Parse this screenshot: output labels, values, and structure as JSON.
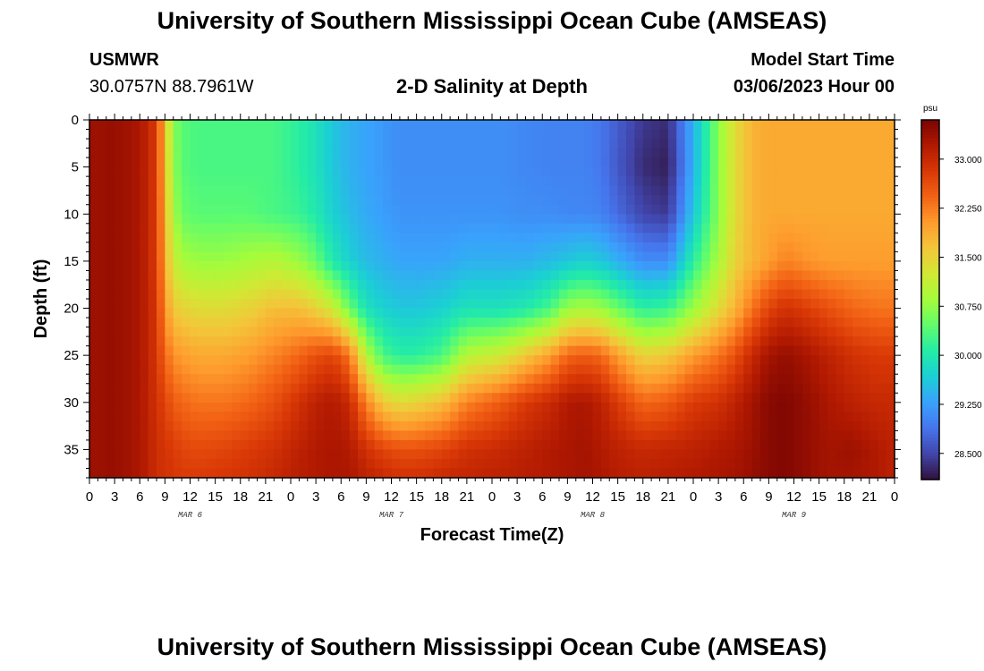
{
  "header": {
    "title": "University of Southern Mississippi Ocean Cube (AMSEAS)",
    "station_id": "USMWR",
    "station_coords": "30.0757N  88.7961W",
    "plot_title": "2-D Salinity at Depth",
    "model_start_label": "Model Start Time",
    "model_start_value": "03/06/2023 Hour 00"
  },
  "footer": {
    "title": "University of Southern Mississippi Ocean Cube (AMSEAS)"
  },
  "chart_data": {
    "type": "heatmap",
    "title": "2-D Salinity at Depth",
    "xlabel": "Forecast Time(Z)",
    "ylabel": "Depth (ft)",
    "x_unit": "forecast hours from 03/06/2023 00Z",
    "xlim": [
      0,
      96
    ],
    "ylim": [
      38,
      0
    ],
    "x_tick_values": [
      0,
      3,
      6,
      9,
      12,
      15,
      18,
      21,
      24,
      27,
      30,
      33,
      36,
      39,
      42,
      45,
      48,
      51,
      54,
      57,
      60,
      63,
      66,
      69,
      72,
      75,
      78,
      81,
      84,
      87,
      90,
      93,
      96
    ],
    "x_tick_labels": [
      "0",
      "3",
      "6",
      "9",
      "12",
      "15",
      "18",
      "21",
      "0",
      "3",
      "6",
      "9",
      "12",
      "15",
      "18",
      "21",
      "0",
      "3",
      "6",
      "9",
      "12",
      "15",
      "18",
      "21",
      "0",
      "3",
      "6",
      "9",
      "12",
      "15",
      "18",
      "21",
      "0"
    ],
    "date_labels": [
      {
        "hour": 12,
        "label": "MAR 6"
      },
      {
        "hour": 36,
        "label": "MAR 7"
      },
      {
        "hour": 60,
        "label": "MAR 8"
      },
      {
        "hour": 84,
        "label": "MAR 9"
      }
    ],
    "y_tick_values": [
      0,
      5,
      10,
      15,
      20,
      25,
      30,
      35
    ],
    "y_tick_labels": [
      "0",
      "5",
      "10",
      "15",
      "20",
      "25",
      "30",
      "35"
    ],
    "colorbar": {
      "unit": "psu",
      "range": [
        28.1,
        33.6
      ],
      "tick_values": [
        28.5,
        29.25,
        30.0,
        30.75,
        31.5,
        32.25,
        33.0
      ],
      "tick_labels": [
        "28.500",
        "29.250",
        "30.000",
        "30.750",
        "31.500",
        "32.250",
        "33.000"
      ],
      "colormap": [
        "#30123b",
        "#4145ab",
        "#4675ed",
        "#39a2fc",
        "#1bcfd4",
        "#24eca6",
        "#61fc6c",
        "#a4fc3b",
        "#d1e834",
        "#f3c63a",
        "#fe9b2d",
        "#f36315",
        "#d93806",
        "#b11901",
        "#7a0402"
      ]
    },
    "field_description": "Salinity (psu) vs forecast time (hours) and depth (ft)",
    "salinity_profiles": {
      "depths_ft": [
        0,
        5,
        10,
        15,
        20,
        25,
        30,
        35,
        38
      ],
      "times_h": [
        0,
        3,
        6,
        8,
        9,
        10,
        11,
        13,
        16,
        19,
        22,
        25,
        27,
        29,
        31,
        33,
        35,
        37,
        39,
        42,
        45,
        49,
        52,
        55,
        57,
        59,
        61,
        63,
        66,
        69,
        72,
        75,
        77,
        79,
        81,
        83,
        85,
        88,
        91,
        94,
        96
      ],
      "values": [
        [
          33.35,
          33.35,
          33.35,
          33.35,
          33.35,
          33.35,
          33.35,
          33.35,
          33.35
        ],
        [
          33.4,
          33.4,
          33.4,
          33.4,
          33.4,
          33.4,
          33.4,
          33.4,
          33.4
        ],
        [
          33.25,
          33.25,
          33.25,
          33.25,
          33.25,
          33.25,
          33.25,
          33.25,
          33.25
        ],
        [
          32.8,
          32.8,
          32.8,
          32.8,
          32.85,
          32.85,
          32.9,
          32.95,
          32.95
        ],
        [
          31.7,
          31.7,
          31.8,
          31.9,
          32.1,
          32.4,
          32.7,
          32.85,
          32.9
        ],
        [
          30.7,
          30.75,
          30.9,
          31.2,
          31.6,
          32.1,
          32.5,
          32.8,
          32.85
        ],
        [
          30.4,
          30.4,
          30.5,
          30.9,
          31.5,
          32.0,
          32.4,
          32.7,
          32.8
        ],
        [
          30.3,
          30.3,
          30.4,
          30.8,
          31.4,
          31.9,
          32.3,
          32.65,
          32.8
        ],
        [
          30.3,
          30.3,
          30.4,
          30.8,
          31.4,
          31.9,
          32.3,
          32.7,
          32.85
        ],
        [
          30.3,
          30.3,
          30.4,
          30.9,
          31.5,
          32.0,
          32.4,
          32.8,
          32.9
        ],
        [
          30.3,
          30.3,
          30.3,
          31.0,
          31.7,
          32.2,
          32.6,
          32.9,
          33.0
        ],
        [
          30.1,
          30.1,
          30.2,
          30.8,
          31.7,
          32.4,
          32.9,
          33.1,
          33.15
        ],
        [
          29.9,
          29.9,
          30.0,
          30.5,
          31.5,
          32.6,
          33.1,
          33.2,
          33.2
        ],
        [
          29.6,
          29.6,
          29.7,
          30.0,
          31.2,
          32.7,
          33.2,
          33.25,
          33.25
        ],
        [
          29.4,
          29.4,
          29.5,
          29.7,
          30.5,
          32.3,
          33.0,
          33.2,
          33.25
        ],
        [
          29.3,
          29.3,
          29.35,
          29.5,
          29.9,
          31.0,
          32.2,
          32.9,
          33.1
        ],
        [
          29.2,
          29.2,
          29.25,
          29.4,
          29.7,
          30.3,
          31.6,
          32.7,
          33.0
        ],
        [
          29.1,
          29.1,
          29.15,
          29.3,
          29.6,
          30.1,
          31.4,
          32.6,
          32.9
        ],
        [
          29.1,
          29.1,
          29.15,
          29.3,
          29.6,
          30.1,
          31.5,
          32.6,
          32.9
        ],
        [
          29.1,
          29.1,
          29.15,
          29.3,
          29.7,
          30.3,
          31.7,
          32.7,
          33.0
        ],
        [
          29.1,
          29.1,
          29.15,
          29.4,
          29.9,
          31.0,
          32.2,
          32.9,
          33.05
        ],
        [
          29.1,
          29.1,
          29.15,
          29.4,
          29.9,
          31.2,
          32.5,
          33.0,
          33.1
        ],
        [
          29.05,
          29.05,
          29.1,
          29.4,
          30.0,
          31.6,
          32.8,
          33.1,
          33.15
        ],
        [
          29.0,
          29.0,
          29.1,
          29.5,
          30.3,
          32.0,
          33.0,
          33.2,
          33.2
        ],
        [
          29.0,
          29.0,
          29.05,
          29.6,
          30.8,
          32.4,
          33.2,
          33.25,
          33.25
        ],
        [
          29.0,
          29.0,
          29.05,
          29.7,
          30.9,
          32.5,
          33.25,
          33.3,
          33.3
        ],
        [
          28.9,
          28.9,
          29.0,
          29.6,
          30.8,
          32.4,
          33.1,
          33.2,
          33.25
        ],
        [
          28.7,
          28.65,
          28.8,
          29.4,
          30.5,
          32.0,
          32.8,
          33.1,
          33.15
        ],
        [
          28.4,
          28.3,
          28.5,
          29.1,
          30.1,
          31.5,
          32.4,
          33.0,
          33.1
        ],
        [
          28.3,
          28.2,
          28.4,
          29.1,
          30.2,
          31.6,
          32.5,
          33.05,
          33.15
        ],
        [
          29.4,
          29.4,
          29.6,
          30.1,
          30.8,
          32.0,
          32.8,
          33.1,
          33.2
        ],
        [
          30.7,
          30.7,
          30.7,
          30.9,
          31.4,
          32.3,
          32.9,
          33.2,
          33.25
        ],
        [
          31.4,
          31.4,
          31.4,
          31.5,
          31.8,
          32.6,
          33.1,
          33.25,
          33.3
        ],
        [
          31.8,
          31.8,
          31.8,
          31.8,
          32.3,
          33.0,
          33.3,
          33.35,
          33.4
        ],
        [
          31.9,
          31.9,
          31.9,
          32.0,
          32.7,
          33.3,
          33.5,
          33.5,
          33.5
        ],
        [
          31.9,
          31.9,
          31.9,
          32.2,
          32.9,
          33.4,
          33.55,
          33.55,
          33.55
        ],
        [
          31.9,
          31.9,
          31.9,
          32.1,
          32.8,
          33.3,
          33.45,
          33.45,
          33.45
        ],
        [
          31.9,
          31.9,
          31.9,
          32.0,
          32.6,
          33.1,
          33.25,
          33.3,
          33.3
        ],
        [
          31.9,
          31.9,
          31.9,
          32.0,
          32.4,
          32.9,
          33.1,
          33.35,
          33.3
        ],
        [
          31.9,
          31.9,
          31.9,
          32.0,
          32.3,
          32.8,
          33.0,
          33.2,
          33.2
        ],
        [
          31.9,
          31.9,
          31.9,
          32.0,
          32.3,
          32.8,
          33.0,
          33.1,
          33.1
        ]
      ]
    }
  }
}
